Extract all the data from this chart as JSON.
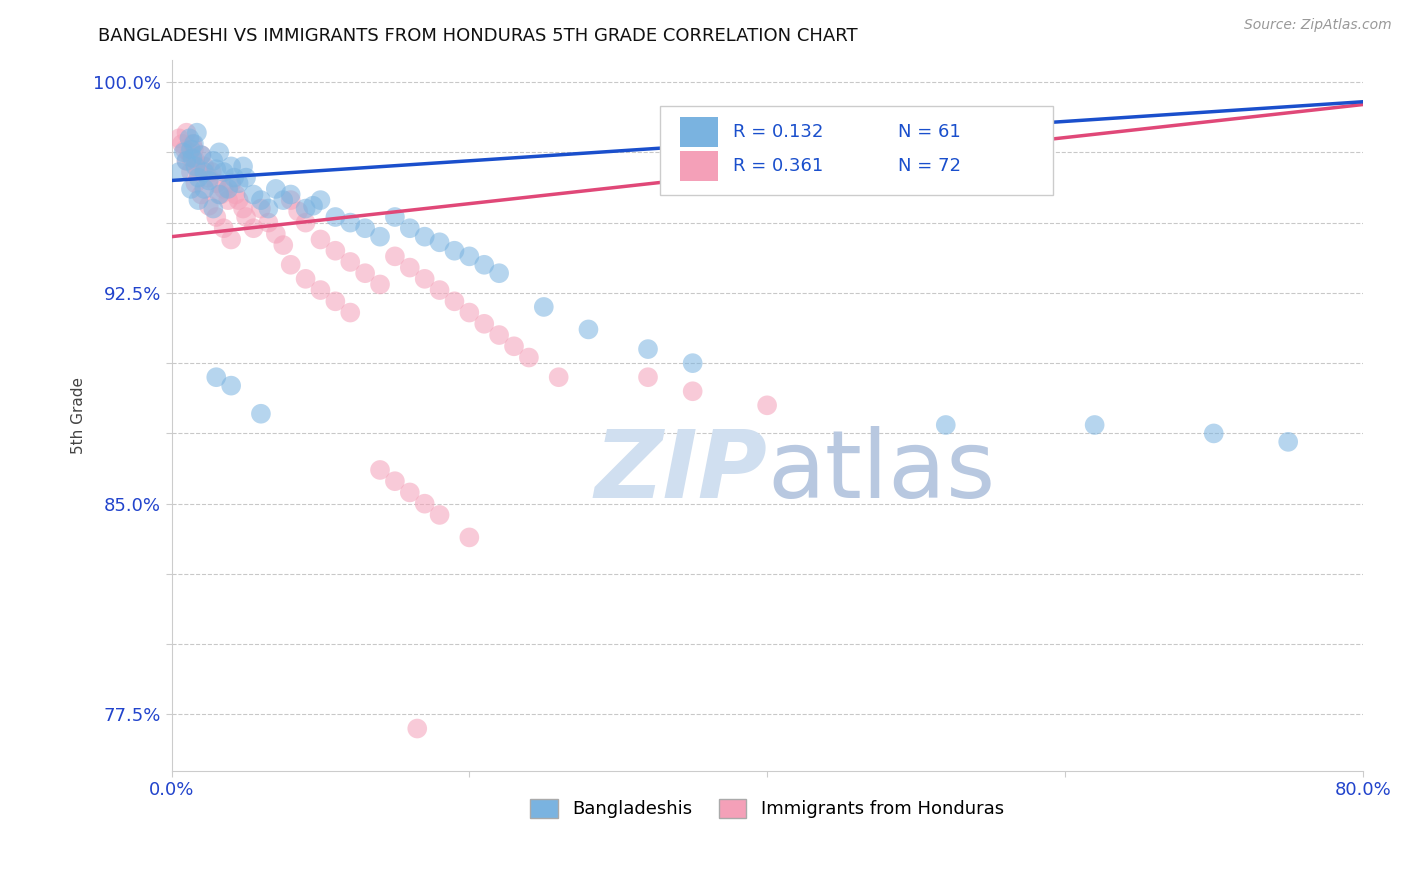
{
  "title": "BANGLADESHI VS IMMIGRANTS FROM HONDURAS 5TH GRADE CORRELATION CHART",
  "source": "Source: ZipAtlas.com",
  "ylabel": "5th Grade",
  "xlim": [
    0.0,
    0.8
  ],
  "ylim": [
    0.755,
    1.008
  ],
  "xticks": [
    0.0,
    0.2,
    0.4,
    0.6,
    0.8
  ],
  "xtick_labels": [
    "0.0%",
    "",
    "",
    "",
    "80.0%"
  ],
  "ytick_positions": [
    0.775,
    0.8,
    0.825,
    0.85,
    0.875,
    0.9,
    0.925,
    0.95,
    0.975,
    1.0
  ],
  "ytick_labels": [
    "77.5%",
    "",
    "",
    "85.0%",
    "",
    "",
    "92.5%",
    "",
    "",
    "100.0%"
  ],
  "legend_labels": [
    "Bangladeshis",
    "Immigrants from Honduras"
  ],
  "blue_R": "0.132",
  "blue_N": "61",
  "pink_R": "0.361",
  "pink_N": "72",
  "blue_color": "#7ab3e0",
  "pink_color": "#f4a0b8",
  "blue_line_color": "#1a4fcc",
  "pink_line_color": "#e04878",
  "title_color": "#111111",
  "axis_label_color": "#444444",
  "tick_color": "#2244cc",
  "watermark_color": "#d0dff0",
  "blue_line_x0": 0.0,
  "blue_line_y0": 0.965,
  "blue_line_x1": 0.8,
  "blue_line_y1": 0.993,
  "pink_line_x0": 0.0,
  "pink_line_y0": 0.945,
  "pink_line_x1": 0.8,
  "pink_line_y1": 0.992,
  "blue_scatter_x": [
    0.005,
    0.008,
    0.01,
    0.012,
    0.013,
    0.014,
    0.015,
    0.016,
    0.017,
    0.018,
    0.02,
    0.022,
    0.025,
    0.028,
    0.03,
    0.032,
    0.035,
    0.038,
    0.04,
    0.042,
    0.045,
    0.048,
    0.05,
    0.055,
    0.06,
    0.065,
    0.07,
    0.075,
    0.08,
    0.09,
    0.095,
    0.1,
    0.11,
    0.12,
    0.13,
    0.14,
    0.15,
    0.16,
    0.17,
    0.18,
    0.19,
    0.2,
    0.21,
    0.22,
    0.25,
    0.28,
    0.32,
    0.35,
    0.013,
    0.018,
    0.022,
    0.028,
    0.032,
    0.52,
    0.62,
    0.7,
    0.75,
    0.03,
    0.04,
    0.06
  ],
  "blue_scatter_y": [
    0.968,
    0.975,
    0.972,
    0.98,
    0.976,
    0.973,
    0.978,
    0.97,
    0.982,
    0.966,
    0.974,
    0.968,
    0.965,
    0.972,
    0.969,
    0.975,
    0.968,
    0.962,
    0.97,
    0.966,
    0.964,
    0.97,
    0.966,
    0.96,
    0.958,
    0.955,
    0.962,
    0.958,
    0.96,
    0.955,
    0.956,
    0.958,
    0.952,
    0.95,
    0.948,
    0.945,
    0.952,
    0.948,
    0.945,
    0.943,
    0.94,
    0.938,
    0.935,
    0.932,
    0.92,
    0.912,
    0.905,
    0.9,
    0.962,
    0.958,
    0.962,
    0.955,
    0.96,
    0.878,
    0.878,
    0.875,
    0.872,
    0.895,
    0.892,
    0.882
  ],
  "pink_scatter_x": [
    0.005,
    0.007,
    0.009,
    0.01,
    0.012,
    0.013,
    0.014,
    0.015,
    0.016,
    0.017,
    0.018,
    0.02,
    0.022,
    0.025,
    0.027,
    0.03,
    0.033,
    0.035,
    0.038,
    0.04,
    0.043,
    0.045,
    0.048,
    0.05,
    0.055,
    0.06,
    0.065,
    0.07,
    0.075,
    0.08,
    0.085,
    0.09,
    0.1,
    0.11,
    0.12,
    0.13,
    0.14,
    0.15,
    0.16,
    0.17,
    0.18,
    0.19,
    0.2,
    0.21,
    0.22,
    0.23,
    0.24,
    0.26,
    0.01,
    0.013,
    0.016,
    0.02,
    0.025,
    0.03,
    0.035,
    0.04,
    0.165,
    0.32,
    0.35,
    0.4,
    0.14,
    0.15,
    0.16,
    0.17,
    0.18,
    0.2,
    0.08,
    0.09,
    0.1,
    0.11,
    0.12
  ],
  "pink_scatter_y": [
    0.98,
    0.978,
    0.976,
    0.982,
    0.975,
    0.973,
    0.978,
    0.976,
    0.972,
    0.97,
    0.968,
    0.974,
    0.97,
    0.966,
    0.968,
    0.964,
    0.96,
    0.962,
    0.958,
    0.964,
    0.96,
    0.958,
    0.955,
    0.952,
    0.948,
    0.955,
    0.95,
    0.946,
    0.942,
    0.958,
    0.954,
    0.95,
    0.944,
    0.94,
    0.936,
    0.932,
    0.928,
    0.938,
    0.934,
    0.93,
    0.926,
    0.922,
    0.918,
    0.914,
    0.91,
    0.906,
    0.902,
    0.895,
    0.972,
    0.968,
    0.964,
    0.96,
    0.956,
    0.952,
    0.948,
    0.944,
    0.77,
    0.895,
    0.89,
    0.885,
    0.862,
    0.858,
    0.854,
    0.85,
    0.846,
    0.838,
    0.935,
    0.93,
    0.926,
    0.922,
    0.918
  ]
}
